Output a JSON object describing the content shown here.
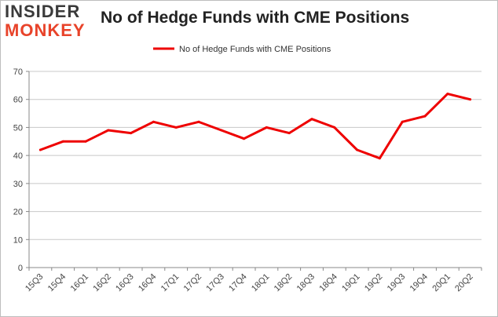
{
  "brand": {
    "logo_top": "INSIDER",
    "logo_bottom": "MONKEY"
  },
  "colors": {
    "series": "#ee0000",
    "grid": "#c8c8c8",
    "axis": "#888888",
    "logo_top": "#3a3a3a",
    "logo_bottom": "#e8432a"
  },
  "chart_data": {
    "type": "line",
    "title": "No of Hedge Funds with CME Positions",
    "xlabel": "",
    "ylabel": "",
    "ylim": [
      0,
      70
    ],
    "yticks": [
      0,
      10,
      20,
      30,
      40,
      50,
      60,
      70
    ],
    "grid": true,
    "legend_position": "top-center",
    "categories": [
      "15Q3",
      "15Q4",
      "16Q1",
      "16Q2",
      "16Q3",
      "16Q4",
      "17Q1",
      "17Q2",
      "17Q3",
      "17Q4",
      "18Q1",
      "18Q2",
      "18Q3",
      "18Q4",
      "19Q1",
      "19Q2",
      "19Q3",
      "19Q4",
      "20Q1",
      "20Q2"
    ],
    "series": [
      {
        "name": "No of Hedge Funds with CME Positions",
        "values": [
          42,
          45,
          45,
          49,
          48,
          52,
          50,
          52,
          49,
          46,
          50,
          48,
          53,
          50,
          42,
          39,
          52,
          54,
          62,
          60
        ]
      }
    ]
  }
}
